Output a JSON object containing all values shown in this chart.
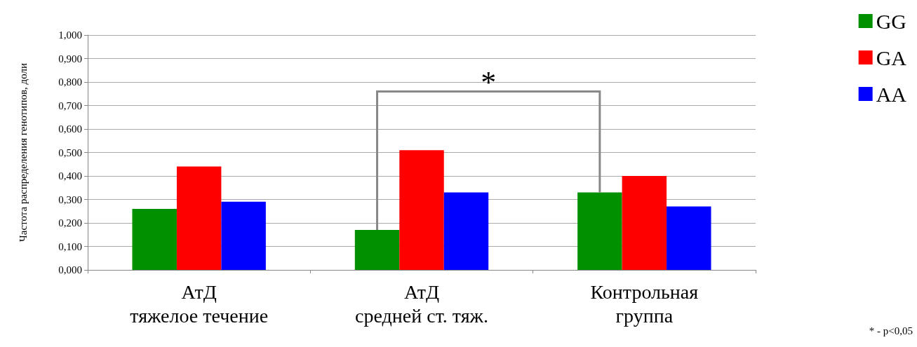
{
  "chart_data": {
    "type": "bar",
    "ylabel": "Частота распределения генотипов, доли",
    "categories": [
      "АтД\nтяжелое течение",
      "АтД\nсредней ст. тяж.",
      "Контрольная\nгруппа"
    ],
    "series": [
      {
        "name": "GG",
        "color": "#009000",
        "values": [
          0.26,
          0.17,
          0.33
        ]
      },
      {
        "name": "GA",
        "color": "#ff0000",
        "values": [
          0.44,
          0.51,
          0.4
        ]
      },
      {
        "name": "AA",
        "color": "#0000ff",
        "values": [
          0.29,
          0.33,
          0.27
        ]
      }
    ],
    "ylim": [
      0,
      1
    ],
    "yticks": [
      {
        "value": 0,
        "label": "0,000"
      },
      {
        "value": 0.1,
        "label": "0,100"
      },
      {
        "value": 0.2,
        "label": "0,200"
      },
      {
        "value": 0.3,
        "label": "0,300"
      },
      {
        "value": 0.4,
        "label": "0,400"
      },
      {
        "value": 0.5,
        "label": "0,500"
      },
      {
        "value": 0.6,
        "label": "0,600"
      },
      {
        "value": 0.7,
        "label": "0,700"
      },
      {
        "value": 0.8,
        "label": "0,800"
      },
      {
        "value": 0.9,
        "label": "0,900"
      },
      {
        "value": 1,
        "label": "1,000"
      }
    ],
    "annotations": [
      "*",
      "* - p<0,05"
    ],
    "grid": "y",
    "legend": "top right"
  }
}
